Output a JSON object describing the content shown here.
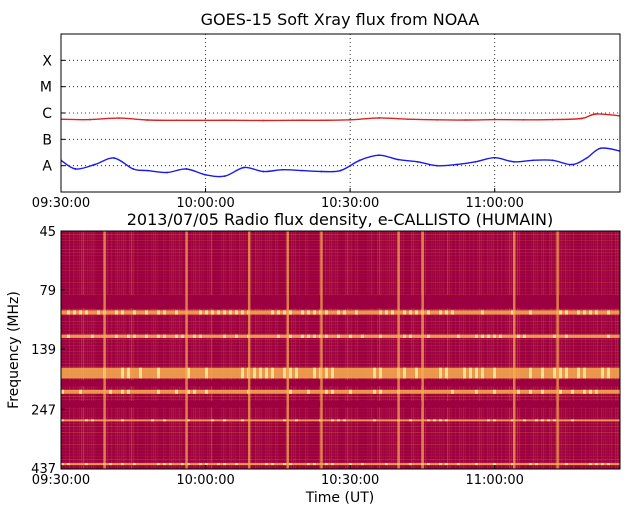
{
  "chart_data": [
    {
      "type": "line",
      "title": "GOES-15 Soft Xray flux from NOAA",
      "xlabel": "",
      "ylabel": "",
      "x_ticks": [
        "09:30:00",
        "10:00:00",
        "10:30:00",
        "11:00:00"
      ],
      "x_range": [
        "09:30:00",
        "11:26:00"
      ],
      "y_scale": "log",
      "y_ticks": [
        "A",
        "B",
        "C",
        "M",
        "X"
      ],
      "y_range": [
        1e-09,
        0.001
      ],
      "grid": true,
      "series": [
        {
          "color": "#dd2222",
          "x": [
            "09:30:00",
            "09:36:00",
            "09:42:00",
            "09:48:00",
            "09:54:00",
            "10:00:00",
            "10:06:00",
            "10:12:00",
            "10:18:00",
            "10:24:00",
            "10:30:00",
            "10:36:00",
            "10:42:00",
            "10:48:00",
            "10:54:00",
            "11:00:00",
            "11:06:00",
            "11:12:00",
            "11:18:00",
            "11:21:00",
            "11:26:00"
          ],
          "values": [
            5.8e-07,
            5.6e-07,
            6.4e-07,
            5.4e-07,
            5.3e-07,
            5.3e-07,
            5.3e-07,
            5.2e-07,
            5.3e-07,
            5.3e-07,
            5.5e-07,
            6.5e-07,
            5.8e-07,
            5.5e-07,
            5.4e-07,
            5.6e-07,
            5.5e-07,
            5.6e-07,
            6.2e-07,
            9.2e-07,
            7.8e-07
          ]
        },
        {
          "color": "#1a1aee",
          "x": [
            "09:30:00",
            "09:33:00",
            "09:37:00",
            "09:41:00",
            "09:45:00",
            "09:48:00",
            "09:52:00",
            "09:56:00",
            "10:00:00",
            "10:04:00",
            "10:08:00",
            "10:12:00",
            "10:16:00",
            "10:20:00",
            "10:24:00",
            "10:28:00",
            "10:32:00",
            "10:36:00",
            "10:40:00",
            "10:44:00",
            "10:48:00",
            "10:52:00",
            "10:56:00",
            "11:00:00",
            "11:04:00",
            "11:08:00",
            "11:12:00",
            "11:16:00",
            "11:19:00",
            "11:22:00",
            "11:26:00"
          ],
          "values": [
            1.6e-08,
            7.5e-09,
            1.1e-08,
            1.95e-08,
            7.5e-09,
            6.5e-09,
            5.5e-09,
            7.5e-09,
            4.5e-09,
            4e-09,
            8.5e-09,
            6e-09,
            7e-09,
            6.5e-09,
            6e-09,
            6.5e-09,
            1.6e-08,
            2.5e-08,
            1.7e-08,
            1.4e-08,
            1e-08,
            1.1e-08,
            1.4e-08,
            2e-08,
            1.4e-08,
            1.6e-08,
            1.6e-08,
            1.1e-08,
            1.9e-08,
            4.6e-08,
            3.6e-08
          ]
        }
      ]
    },
    {
      "type": "heatmap",
      "title": "2013/07/05  Radio flux density, e-CALLISTO (HUMAIN)",
      "xlabel": "Time (UT)",
      "ylabel": "Frequency (MHz)",
      "x_ticks": [
        "09:30:00",
        "10:00:00",
        "10:30:00",
        "11:00:00"
      ],
      "x_range": [
        "09:30:00",
        "11:26:00"
      ],
      "y_ticks": [
        "45",
        "79",
        "139",
        "247",
        "437"
      ],
      "y_range": [
        45,
        437
      ],
      "y_scale": "log",
      "y_inverted": true,
      "colormap": [
        "#9c0040",
        "#c8343c",
        "#ea7a3a",
        "#f8b050",
        "#fff0a0"
      ],
      "bright_bands_mhz": [
        [
          96,
          100
        ],
        [
          121,
          125
        ],
        [
          166,
          184
        ],
        [
          205,
          213
        ],
        [
          272,
          276
        ],
        [
          413,
          420
        ]
      ],
      "dark_bands_mhz": [
        [
          83,
          94
        ],
        [
          187,
          198
        ],
        [
          228,
          243
        ]
      ],
      "bright_times": [
        "09:39:00",
        "09:56:00",
        "10:09:00",
        "10:17:00",
        "10:24:00",
        "10:40:00",
        "10:45:00",
        "11:04:00",
        "11:13:00"
      ]
    }
  ]
}
